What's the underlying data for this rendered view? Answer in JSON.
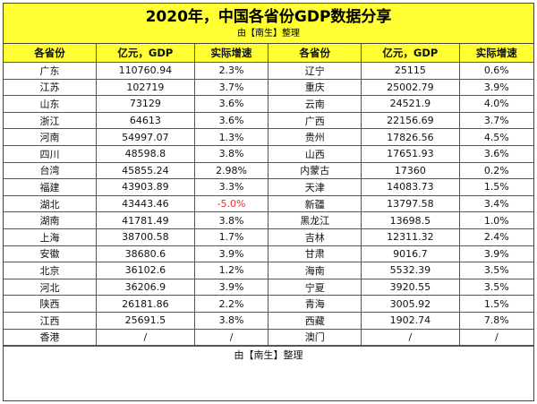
{
  "title": "2020年，中国各省份GDP数据分享",
  "subtitle": "由【南生】整理",
  "headers": [
    "各省份",
    "亿元，GDP",
    "实际增速",
    "各省份",
    "亿元，GDP",
    "实际增速"
  ],
  "rows": [
    [
      "广东",
      "110760.94",
      "2.3%",
      "辽宁",
      "25115",
      "0.6%"
    ],
    [
      "江苏",
      "102719",
      "3.7%",
      "重庆",
      "25002.79",
      "3.9%"
    ],
    [
      "山东",
      "73129",
      "3.6%",
      "云南",
      "24521.9",
      "4.0%"
    ],
    [
      "浙江",
      "64613",
      "3.6%",
      "广西",
      "22156.69",
      "3.7%"
    ],
    [
      "河南",
      "54997.07",
      "1.3%",
      "贵州",
      "17826.56",
      "4.5%"
    ],
    [
      "四川",
      "48598.8",
      "3.8%",
      "山西",
      "17651.93",
      "3.6%"
    ],
    [
      "台湾",
      "45855.24",
      "2.98%",
      "内蒙古",
      "17360",
      "0.2%"
    ],
    [
      "福建",
      "43903.89",
      "3.3%",
      "天津",
      "14083.73",
      "1.5%"
    ],
    [
      "湖北",
      "43443.46",
      "-5.0%",
      "新疆",
      "13797.58",
      "3.4%"
    ],
    [
      "湖南",
      "41781.49",
      "3.8%",
      "黑龙江",
      "13698.5",
      "1.0%"
    ],
    [
      "上海",
      "38700.58",
      "1.7%",
      "吉林",
      "12311.32",
      "2.4%"
    ],
    [
      "安徽",
      "38680.6",
      "3.9%",
      "甘肃",
      "9016.7",
      "3.9%"
    ],
    [
      "北京",
      "36102.6",
      "1.2%",
      "海南",
      "5532.39",
      "3.5%"
    ],
    [
      "河北",
      "36206.9",
      "3.9%",
      "宁夏",
      "3920.55",
      "3.5%"
    ],
    [
      "陕西",
      "26181.86",
      "2.2%",
      "青海",
      "3005.92",
      "1.5%"
    ],
    [
      "江西",
      "25691.5",
      "3.8%",
      "西藏",
      "1902.74",
      "7.8%"
    ],
    [
      "香港",
      "/",
      "/",
      "澳门",
      "/",
      "/"
    ]
  ],
  "negative_color": "#e8362a",
  "header_bg": "#ffff33",
  "footer": "由【南生】整理"
}
